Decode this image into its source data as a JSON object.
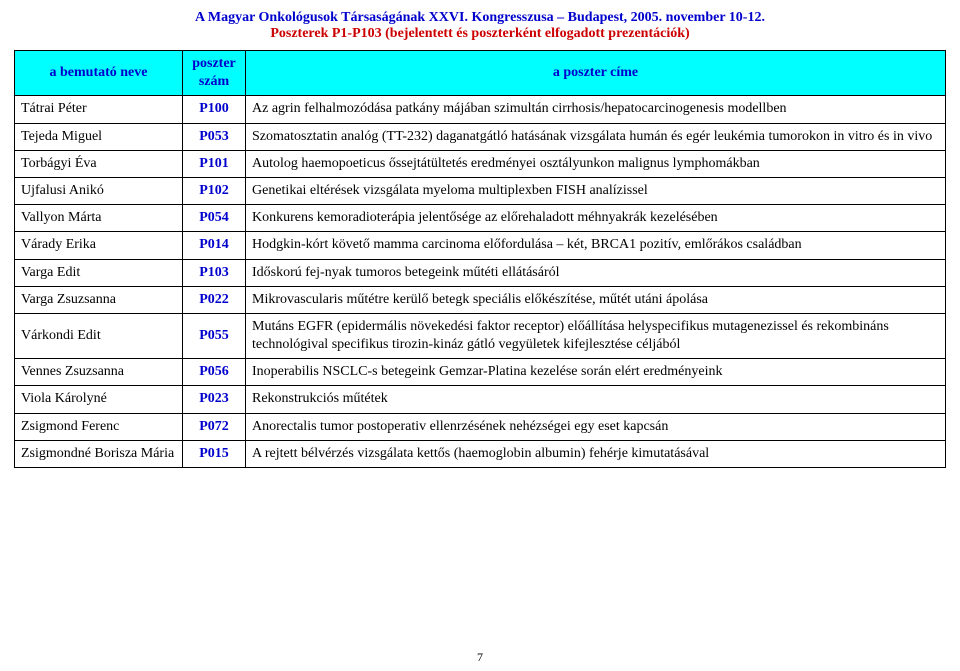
{
  "colors": {
    "title": "#0000cc",
    "subtitle": "#cc0000",
    "header_bg": "#00ffff",
    "header_text": "#0000cc",
    "num_text": "#0000cc",
    "border": "#000000",
    "page_bg": "#ffffff"
  },
  "typography": {
    "base_family": "Times New Roman",
    "base_size_pt": 11,
    "title_size_pt": 12,
    "title_weight": "bold"
  },
  "title_line1": "A Magyar Onkológusok Társaságának XXVI. Kongresszusa – Budapest, 2005. november 10-12.",
  "title_line2": "Poszterek P1-P103 (bejelentett és poszterként elfogadott prezentációk)",
  "columns": {
    "name": "a bemutató neve",
    "num": "poszter szám",
    "title": "a poszter címe"
  },
  "rows": [
    {
      "name": "Tátrai Péter",
      "num": "P100",
      "title": "Az agrin felhalmozódása patkány májában szimultán cirrhosis/hepatocarcinogenesis modellben"
    },
    {
      "name": "Tejeda Miguel",
      "num": "P053",
      "title": "Szomatosztatin analóg (TT-232) daganatgátló hatásának vizsgálata humán és egér leukémia tumorokon in vitro és in vivo"
    },
    {
      "name": "Torbágyi Éva",
      "num": "P101",
      "title": "Autolog haemopoeticus őssejtátültetés eredményei osztályunkon malignus lymphomákban"
    },
    {
      "name": "Ujfalusi Anikó",
      "num": "P102",
      "title": "Genetikai eltérések vizsgálata myeloma multiplexben FISH analízissel"
    },
    {
      "name": "Vallyon Márta",
      "num": "P054",
      "title": "Konkurens kemoradioterápia jelentősége az előrehaladott méhnyakrák kezelésében"
    },
    {
      "name": "Várady Erika",
      "num": "P014",
      "title": "Hodgkin-kórt követő mamma carcinoma előfordulása – két, BRCA1 pozitív, emlőrákos családban"
    },
    {
      "name": "Varga Edit",
      "num": "P103",
      "title": "Időskorú fej-nyak tumoros betegeink műtéti ellátásáról"
    },
    {
      "name": "Varga Zsuzsanna",
      "num": "P022",
      "title": "Mikrovascularis műtétre kerülő betegk speciális előkészítése, műtét utáni ápolása"
    },
    {
      "name": "Várkondi Edit",
      "num": "P055",
      "title": "Mutáns EGFR (epidermális növekedési faktor receptor) előállítása helyspecifikus mutagenezissel és rekombináns technológival specifikus tirozin-kináz gátló vegyületek kifejlesztése céljából"
    },
    {
      "name": "Vennes Zsuzsanna",
      "num": "P056",
      "title": "Inoperabilis NSCLC-s betegeink Gemzar-Platina kezelése során elért eredményeink"
    },
    {
      "name": "Viola Károlyné",
      "num": "P023",
      "title": "Rekonstrukciós műtétek"
    },
    {
      "name": "Zsigmond Ferenc",
      "num": "P072",
      "title": "Anorectalis tumor postoperativ ellenrzésének nehézségei egy eset kapcsán"
    },
    {
      "name": "Zsigmondné Borisza Mária",
      "num": "P015",
      "title": "A rejtett bélvérzés vizsgálata kettős (haemoglobin albumin) fehérje kimutatásával"
    }
  ],
  "page_number": "7"
}
